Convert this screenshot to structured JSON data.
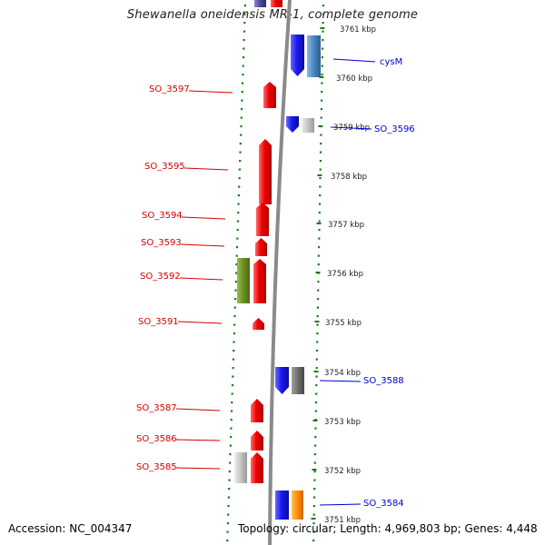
{
  "title": "Shewanella oneidensis MR-1, complete genome",
  "footer": {
    "accession": "Accession: NC_004347",
    "topology": "Topology: circular; Length: 4,969,803 bp; Genes: 4,448"
  },
  "colors": {
    "left_label": "#d40000",
    "right_label": "#0000cc",
    "tick_dots": "#1a7a1a",
    "backbone": "#8a8a8a",
    "scale_text": "#222222"
  },
  "scale_labels": [
    "3761 kbp",
    "3760 kbp",
    "3759 kbp",
    "3758 kbp",
    "3757 kbp",
    "3756 kbp",
    "3755 kbp",
    "3754 kbp",
    "3753 kbp",
    "3752 kbp",
    "3751 kbp"
  ],
  "left_genes": [
    "SO_3597",
    "SO_3595",
    "SO_3594",
    "SO_3593",
    "SO_3592",
    "SO_3591",
    "SO_3587",
    "SO_3586",
    "SO_3585"
  ],
  "right_genes": [
    "cysM",
    "SO_3596",
    "SO_3588",
    "SO_3584"
  ],
  "feature_colors": {
    "red": "#ee0000",
    "blue": "#1a1aee",
    "steelblue": "#4a86c0",
    "olive": "#6b8e23",
    "lightgray": "#c4c4c4",
    "darkgray": "#6e6e6e",
    "orange": "#ff8c00",
    "navy": "#4a4a9a"
  }
}
